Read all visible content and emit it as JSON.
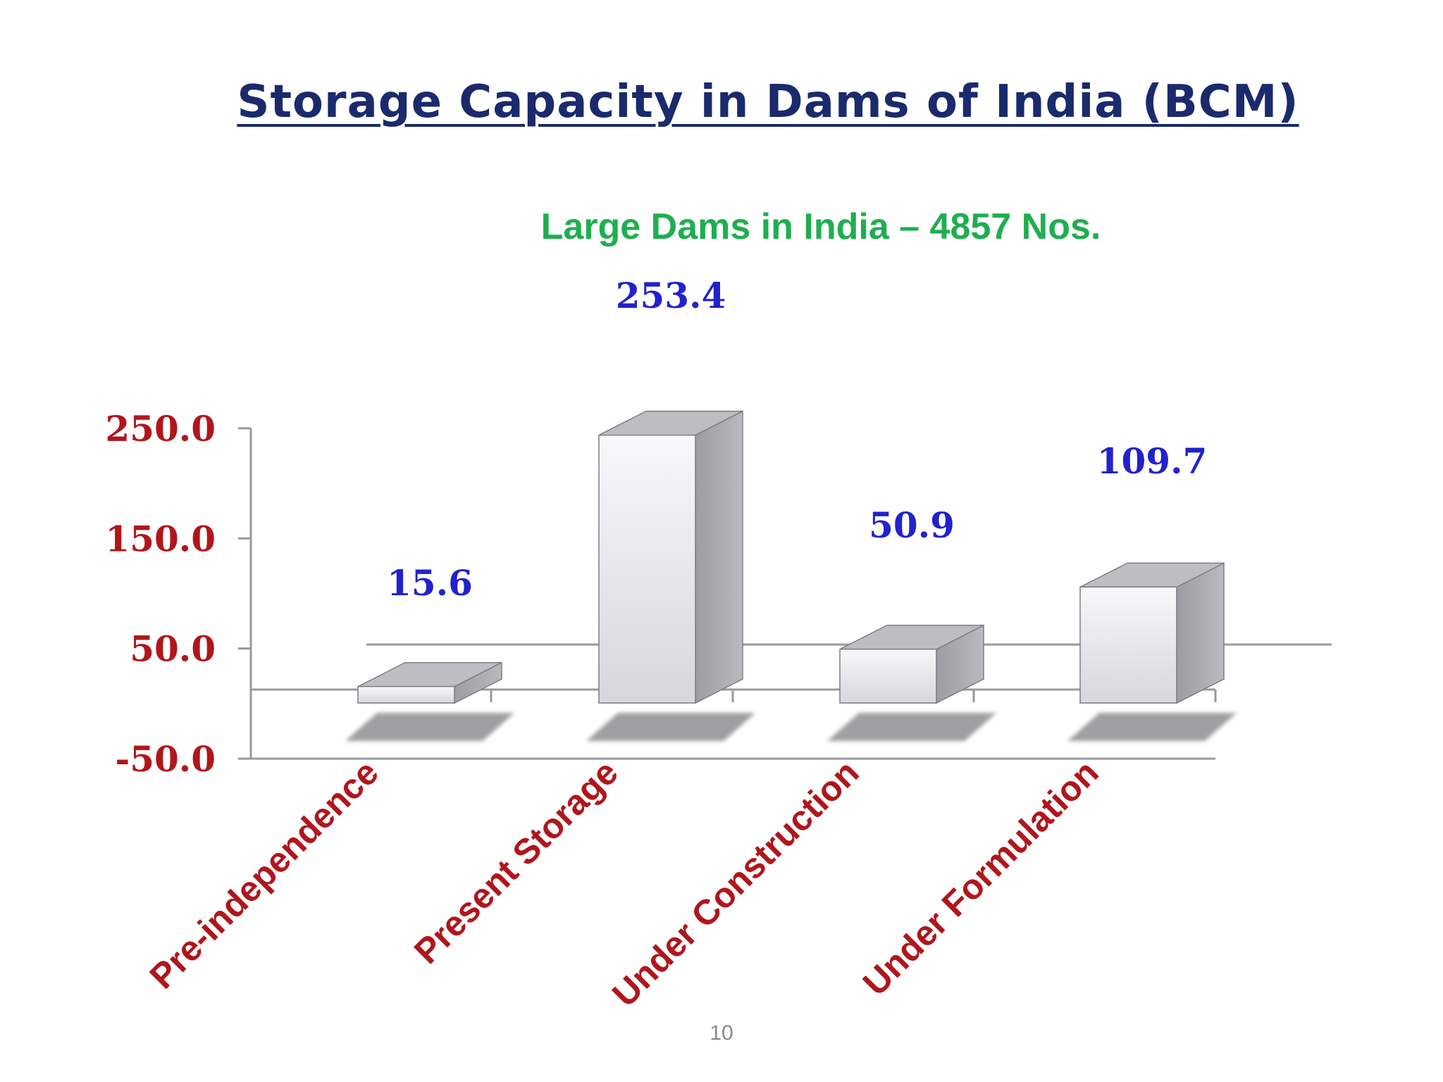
{
  "slide": {
    "title": "Storage Capacity in Dams of India (BCM)",
    "subtitle": "Large Dams in India – 4857 Nos.",
    "page_number": "10"
  },
  "colors": {
    "title": "#1a2a6c",
    "subtitle": "#1fae50",
    "axis_labels": "#b0161c",
    "data_labels": "#2222cc",
    "bar_front": "#e8e8ec",
    "bar_side": "#a2a3a8",
    "bar_top": "#bdbec2",
    "shadow": "#8f8f92"
  },
  "chart_data": {
    "type": "bar",
    "categories": [
      "Pre-independence",
      "Present Storage",
      "Under Construction",
      "Under Formulation"
    ],
    "values": [
      15.6,
      253.4,
      50.9,
      109.7
    ],
    "value_labels": [
      "15.6",
      "253.4",
      "50.9",
      "109.7"
    ],
    "yticks": [
      "250.0",
      "150.0",
      "50.0",
      "-50.0"
    ],
    "ytick_values": [
      250,
      150,
      50,
      -50
    ],
    "ylim": [
      -50,
      250
    ],
    "title": "Storage Capacity in Dams of India (BCM)",
    "subtitle": "Large Dams in India – 4857 Nos.",
    "style": "3d-column",
    "grid": false,
    "legend": "none"
  }
}
